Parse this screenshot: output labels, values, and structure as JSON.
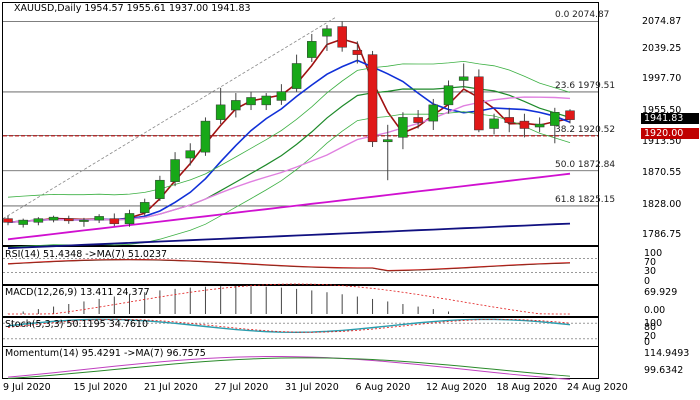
{
  "symbol_header": "XAUUSD,Daily  1954.57 1955.61 1937.00 1941.83",
  "price_axis": [
    "2074.87",
    "2039.25",
    "1997.70",
    "1955.50",
    "1913.50",
    "1870.55",
    "1828.00",
    "1786.75"
  ],
  "fib_levels": [
    {
      "label": "0.0 2074.87",
      "price": 2074.87
    },
    {
      "label": "23.6 1979.51",
      "price": 1979.51
    },
    {
      "label": "38.2 1920.52",
      "price": 1920.52
    },
    {
      "label": "50.0 1872.84",
      "price": 1872.84
    },
    {
      "label": "61.8 1825.15",
      "price": 1825.15
    }
  ],
  "current_price_badge": "1941.83",
  "level_badge": "1920.00",
  "dates": [
    "9 Jul 2020",
    "15 Jul 2020",
    "21 Jul 2020",
    "27 Jul 2020",
    "31 Jul 2020",
    "6 Aug 2020",
    "12 Aug 2020",
    "18 Aug 2020",
    "24 Aug 2020"
  ],
  "rsi": {
    "label": "RSI(14) 51.4348  ->MA(7) 51.0237",
    "axis": [
      "100",
      "70",
      "30",
      "0"
    ]
  },
  "macd": {
    "label": "MACD(12,26,9) 13.411 24.377",
    "axis": [
      "69.929",
      "0.00"
    ]
  },
  "stoch": {
    "label": "Stoch(5,3,3) 50.1195 34.7610",
    "axis": [
      "100",
      "80",
      "20",
      "0"
    ]
  },
  "momentum": {
    "label": "Momentum(14) 95.4291  ->MA(7) 96.7575",
    "axis": [
      "114.9493",
      "99.6342"
    ]
  },
  "colors": {
    "bull": "#18a818",
    "bear": "#e01818",
    "ma_fast": "#a01010",
    "ma_blue": "#1030d8",
    "ma_green": "#1e8a2a",
    "ma_pink": "#e080e0",
    "ma_magenta": "#d010d0",
    "ma_navy": "#101080",
    "bb": "#3cb043",
    "level": "#c00000",
    "badge_price": "#000000"
  },
  "chart_data": {
    "type": "candlestick",
    "candles": [
      {
        "o": 1808,
        "h": 1812,
        "c": 1803,
        "l": 1799
      },
      {
        "o": 1800,
        "h": 1808,
        "c": 1806,
        "l": 1796
      },
      {
        "o": 1803,
        "h": 1810,
        "c": 1808,
        "l": 1799
      },
      {
        "o": 1806,
        "h": 1812,
        "c": 1810,
        "l": 1803
      },
      {
        "o": 1808,
        "h": 1812,
        "c": 1805,
        "l": 1801
      },
      {
        "o": 1804,
        "h": 1809,
        "c": 1806,
        "l": 1797
      },
      {
        "o": 1806,
        "h": 1814,
        "c": 1811,
        "l": 1802
      },
      {
        "o": 1808,
        "h": 1815,
        "c": 1801,
        "l": 1798
      },
      {
        "o": 1801,
        "h": 1820,
        "c": 1815,
        "l": 1797
      },
      {
        "o": 1816,
        "h": 1835,
        "c": 1830,
        "l": 1812
      },
      {
        "o": 1835,
        "h": 1866,
        "c": 1860,
        "l": 1832
      },
      {
        "o": 1858,
        "h": 1898,
        "c": 1888,
        "l": 1852
      },
      {
        "o": 1890,
        "h": 1910,
        "c": 1900,
        "l": 1880
      },
      {
        "o": 1898,
        "h": 1945,
        "c": 1940,
        "l": 1893
      },
      {
        "o": 1942,
        "h": 1985,
        "c": 1962,
        "l": 1936
      },
      {
        "o": 1955,
        "h": 1978,
        "c": 1968,
        "l": 1945
      },
      {
        "o": 1962,
        "h": 1980,
        "c": 1972,
        "l": 1955
      },
      {
        "o": 1962,
        "h": 1978,
        "c": 1974,
        "l": 1955
      },
      {
        "o": 1968,
        "h": 1990,
        "c": 1980,
        "l": 1962
      },
      {
        "o": 1984,
        "h": 2030,
        "c": 2018,
        "l": 1980
      },
      {
        "o": 2026,
        "h": 2058,
        "c": 2048,
        "l": 2020
      },
      {
        "o": 2055,
        "h": 2070,
        "c": 2065,
        "l": 2035
      },
      {
        "o": 2068,
        "h": 2075,
        "c": 2040,
        "l": 2034
      },
      {
        "o": 2036,
        "h": 2048,
        "c": 2030,
        "l": 2018
      },
      {
        "o": 2030,
        "h": 2035,
        "c": 1912,
        "l": 1905
      },
      {
        "o": 1912,
        "h": 1935,
        "c": 1915,
        "l": 1860
      },
      {
        "o": 1918,
        "h": 1952,
        "c": 1945,
        "l": 1902
      },
      {
        "o": 1945,
        "h": 1955,
        "c": 1938,
        "l": 1930
      },
      {
        "o": 1940,
        "h": 1970,
        "c": 1962,
        "l": 1928
      },
      {
        "o": 1962,
        "h": 1995,
        "c": 1988,
        "l": 1950
      },
      {
        "o": 1995,
        "h": 2018,
        "c": 2000,
        "l": 1985
      },
      {
        "o": 2000,
        "h": 2010,
        "c": 1928,
        "l": 1925
      },
      {
        "o": 1930,
        "h": 1950,
        "c": 1943,
        "l": 1922
      },
      {
        "o": 1945,
        "h": 1958,
        "c": 1938,
        "l": 1925
      },
      {
        "o": 1940,
        "h": 1950,
        "c": 1930,
        "l": 1918
      },
      {
        "o": 1932,
        "h": 1945,
        "c": 1936,
        "l": 1925
      },
      {
        "o": 1934,
        "h": 1958,
        "c": 1952,
        "l": 1910
      },
      {
        "o": 1954,
        "h": 1956,
        "c": 1942,
        "l": 1937
      }
    ]
  }
}
